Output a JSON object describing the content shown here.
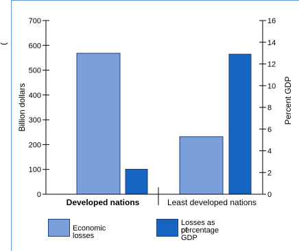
{
  "chart_data": {
    "type": "bar",
    "categories": [
      "Developed nations",
      "Least developed  nations"
    ],
    "series": [
      {
        "name": "Economic losses",
        "axis": "left",
        "color": "#7b9fd8",
        "values": [
          568,
          232
        ]
      },
      {
        "name": "Losses as percentage of GDP",
        "axis": "right",
        "color": "#1565c0",
        "values": [
          2.3,
          12.9
        ]
      }
    ],
    "left_axis": {
      "label": "Billion dollars",
      "range": [
        0,
        700
      ],
      "ticks": [
        "0",
        "100",
        "200",
        "300",
        "400",
        "500",
        "600",
        "700"
      ]
    },
    "right_axis": {
      "label": "Percent GDP",
      "range": [
        0,
        16
      ],
      "ticks": [
        "0",
        "2",
        "4",
        "6",
        "8",
        "10",
        "12",
        "14",
        "16"
      ]
    },
    "category_label_weights": [
      "bold",
      "normal"
    ],
    "legend": [
      {
        "label_lines": [
          "Economic losses"
        ],
        "color": "#7b9fd8"
      },
      {
        "label_lines": [
          "Losses as percentage",
          "of GDP"
        ],
        "color": "#1565c0"
      }
    ],
    "grid": false
  }
}
